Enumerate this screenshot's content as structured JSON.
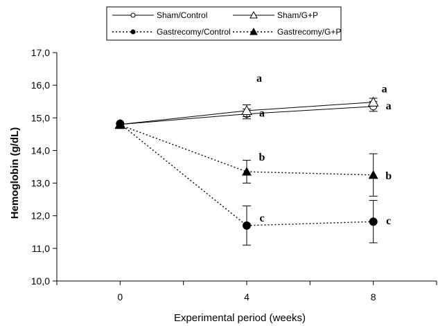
{
  "chart_data": {
    "type": "line",
    "xlabel": "Experimental period (weeks)",
    "ylabel": "Hemoglobin (g/dL)",
    "x": [
      0,
      4,
      8
    ],
    "x_ticks": [
      "0",
      "4",
      "8"
    ],
    "xlim": [
      -2,
      10
    ],
    "ylim": [
      10.0,
      17.0
    ],
    "y_ticks": [
      "10,0",
      "11,0",
      "12,0",
      "13,0",
      "14,0",
      "15,0",
      "16,0",
      "17,0"
    ],
    "legend_placement": "top-center",
    "grid": false,
    "series": [
      {
        "name": "Sham/Control",
        "values": [
          14.8,
          15.12,
          15.35
        ],
        "errors": [
          0,
          0.15,
          0.15
        ],
        "marker": "open-circle",
        "line": "solid",
        "letters": [
          "",
          "a",
          "a"
        ]
      },
      {
        "name": "Sham/G+P",
        "values": [
          14.8,
          15.22,
          15.48
        ],
        "errors": [
          0,
          0.18,
          0.12
        ],
        "marker": "open-triangle",
        "line": "solid",
        "letters": [
          "",
          "a",
          "a"
        ]
      },
      {
        "name": "Gastrecomy/Control",
        "values": [
          14.82,
          11.7,
          11.82
        ],
        "errors": [
          0,
          0.6,
          0.65
        ],
        "marker": "filled-circle",
        "line": "dotted",
        "letters": [
          "",
          "c",
          "c"
        ]
      },
      {
        "name": "Gastrecomy/G+P",
        "values": [
          14.78,
          13.35,
          13.25
        ],
        "errors": [
          0,
          0.35,
          0.65
        ],
        "marker": "filled-triangle",
        "line": "dotted",
        "letters": [
          "",
          "b",
          "b"
        ]
      }
    ]
  }
}
